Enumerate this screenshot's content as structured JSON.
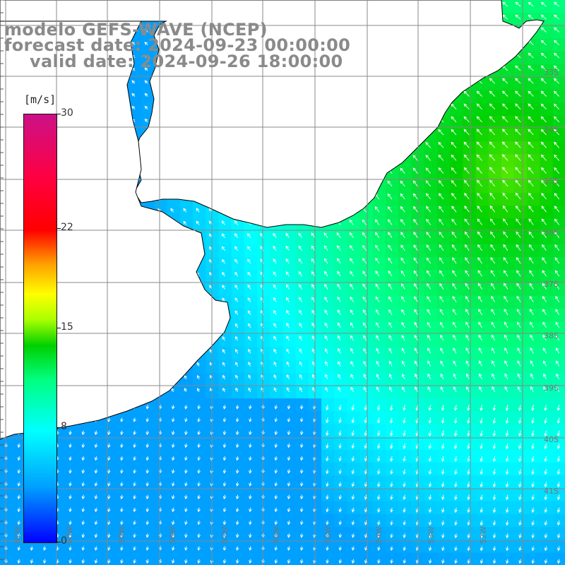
{
  "title": {
    "line1": "modelo GEFS-WAVE (NCEP)",
    "line2": "forecast date: 2024-09-23 00:00:00",
    "line3": "valid date: 2024-09-26 18:00:00"
  },
  "colorbar": {
    "unit": "[m/s]",
    "ticks": [
      "30",
      "22",
      "15",
      "8",
      "0"
    ],
    "tick_values": [
      30,
      22,
      15,
      8,
      0
    ],
    "min": 0,
    "max": 30,
    "colors": [
      "#0000ff",
      "#00a0ff",
      "#00ffff",
      "#00ff80",
      "#00d000",
      "#aaff00",
      "#ffff00",
      "#ffa000",
      "#ff0000",
      "#ff0040",
      "#cc1188"
    ]
  },
  "latitude_labels": [
    "33S",
    "34S",
    "35S",
    "36S",
    "37S",
    "38S",
    "39S",
    "40S",
    "41S"
  ],
  "longitude_labels": [
    "61W",
    "60W",
    "59W",
    "58W",
    "57W",
    "56W",
    "55W",
    "54W",
    "53W",
    "52W"
  ],
  "chart_data": {
    "type": "heatmap",
    "variable": "wind speed",
    "unit": "m/s",
    "vmin": 0,
    "vmax": 30,
    "regions": [
      {
        "area": "northeast offshore (near 34S, 52W)",
        "speed_max_approx": 14
      },
      {
        "area": "central offshore",
        "speed_approx": 9
      },
      {
        "area": "southwest coastal waters",
        "speed_approx": 3
      }
    ],
    "grid": true
  }
}
